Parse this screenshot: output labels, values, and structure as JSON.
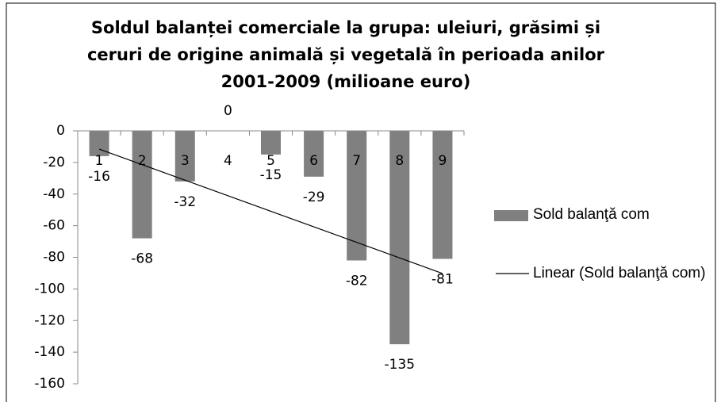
{
  "chart_data": {
    "type": "bar",
    "title": [
      "Soldul balanței comerciale la grupa: uleiuri, grăsimi și",
      "ceruri de origine animală și vegetală în perioada anilor",
      "2001-2009 (milioane euro)"
    ],
    "categories": [
      "1",
      "2",
      "3",
      "4",
      "5",
      "6",
      "7",
      "8",
      "9"
    ],
    "series": [
      {
        "name": "Sold balanţă com",
        "color": "#808080",
        "values": [
          -16,
          -68,
          -32,
          0,
          -15,
          -29,
          -82,
          -135,
          -81
        ]
      }
    ],
    "trendline": {
      "type": "linear",
      "name": "Linear (Sold balanţă com)",
      "color": "#000000"
    },
    "ylim": [
      -160,
      0
    ],
    "yticks": [
      0,
      -20,
      -40,
      -60,
      -80,
      -100,
      -120,
      -140,
      -160
    ],
    "grid": false,
    "legend": "right"
  }
}
